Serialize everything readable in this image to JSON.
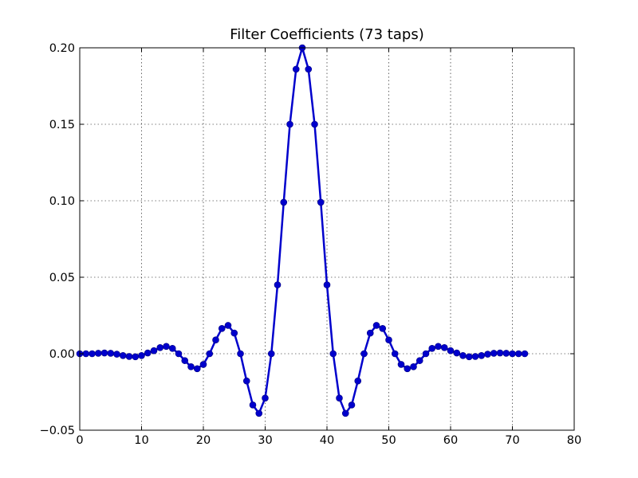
{
  "chart_data": {
    "type": "line",
    "title": "Filter Coefficients (73 taps)",
    "xlabel": "",
    "ylabel": "",
    "xlim": [
      0,
      80
    ],
    "ylim": [
      -0.05,
      0.2
    ],
    "xticks": [
      0,
      10,
      20,
      30,
      40,
      50,
      60,
      70,
      80
    ],
    "yticks": [
      -0.05,
      0.0,
      0.05,
      0.1,
      0.15,
      0.2
    ],
    "xtick_labels": [
      "0",
      "10",
      "20",
      "30",
      "40",
      "50",
      "60",
      "70",
      "80"
    ],
    "ytick_labels": [
      "−0.05",
      "0.00",
      "0.05",
      "0.10",
      "0.15",
      "0.20"
    ],
    "grid": true,
    "legend": false,
    "line_color": "#0000cc",
    "marker_color": "#0000cc",
    "marker": "circle",
    "series": [
      {
        "x": [
          0,
          1,
          2,
          3,
          4,
          5,
          6,
          7,
          8,
          9,
          10,
          11,
          12,
          13,
          14,
          15,
          16,
          17,
          18,
          19,
          20,
          21,
          22,
          23,
          24,
          25,
          26,
          27,
          28,
          29,
          30,
          31,
          32,
          33,
          34,
          35,
          36,
          37,
          38,
          39,
          40,
          41,
          42,
          43,
          44,
          45,
          46,
          47,
          48,
          49,
          50,
          51,
          52,
          53,
          54,
          55,
          56,
          57,
          58,
          59,
          60,
          61,
          62,
          63,
          64,
          65,
          66,
          67,
          68,
          69,
          70,
          71,
          72
        ],
        "values": [
          0.0,
          0.0,
          0.0,
          0.0003,
          0.0005,
          0.0003,
          -0.0003,
          -0.0012,
          -0.0018,
          -0.002,
          -0.0012,
          0.0005,
          0.002,
          0.004,
          0.0048,
          0.0035,
          0.0,
          -0.0045,
          -0.0085,
          -0.0098,
          -0.007,
          0.0,
          0.009,
          0.0165,
          0.0185,
          0.0135,
          0.0,
          -0.0178,
          -0.0335,
          -0.039,
          -0.029,
          0.0,
          0.045,
          0.099,
          0.15,
          0.186,
          0.2,
          0.186,
          0.15,
          0.099,
          0.045,
          0.0,
          -0.029,
          -0.039,
          -0.0335,
          -0.0178,
          0.0,
          0.0135,
          0.0185,
          0.0165,
          0.009,
          0.0,
          -0.007,
          -0.0098,
          -0.0085,
          -0.0045,
          0.0,
          0.0035,
          0.0048,
          0.004,
          0.002,
          0.0005,
          -0.0012,
          -0.002,
          -0.0018,
          -0.0012,
          -0.0003,
          0.0003,
          0.0005,
          0.0003,
          0.0,
          0.0,
          0.0
        ]
      }
    ]
  }
}
